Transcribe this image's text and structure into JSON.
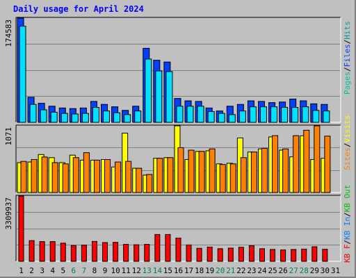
{
  "title": "Daily usage for April 2024",
  "chart_data": [
    {
      "type": "bar",
      "title": "Daily usage for April 2024",
      "categories": [
        "1",
        "2",
        "3",
        "4",
        "5",
        "6",
        "7",
        "8",
        "9",
        "10",
        "11",
        "12",
        "13",
        "14",
        "15",
        "16",
        "17",
        "18",
        "19",
        "20",
        "21",
        "22",
        "23",
        "24",
        "25",
        "26",
        "27",
        "28",
        "29",
        "30",
        "31"
      ],
      "weekend_days": [
        "6",
        "7",
        "13",
        "14",
        "20",
        "21",
        "27",
        "28"
      ],
      "ylabel_max": "174583",
      "ylim": [
        0,
        174583
      ],
      "legend": [
        "Pages",
        "Files",
        "Hits"
      ],
      "series": [
        {
          "name": "Hits",
          "color": "#0040ff",
          "values": [
            174583,
            42000,
            32000,
            27000,
            24000,
            23000,
            24000,
            35000,
            30000,
            26000,
            20000,
            27000,
            124000,
            104000,
            101000,
            40000,
            36000,
            35000,
            24000,
            19000,
            27000,
            30000,
            36000,
            35000,
            33000,
            34000,
            39000,
            36000,
            31000,
            30000,
            null
          ]
        },
        {
          "name": "Files",
          "color": "#00e0ff",
          "values": [
            161000,
            30000,
            21000,
            17000,
            15000,
            14000,
            15000,
            25000,
            19000,
            16000,
            13000,
            19000,
            106000,
            86000,
            85000,
            27000,
            27000,
            27000,
            18000,
            15000,
            13000,
            19000,
            26000,
            26000,
            26000,
            25000,
            25000,
            26000,
            20000,
            19000,
            null
          ]
        },
        {
          "name": "Pages",
          "color": "#00c0a0",
          "values": [
            null,
            null,
            null,
            null,
            null,
            null,
            null,
            null,
            null,
            null,
            null,
            null,
            null,
            null,
            null,
            null,
            null,
            null,
            null,
            null,
            null,
            null,
            null,
            null,
            null,
            null,
            null,
            null,
            null,
            null,
            null
          ]
        }
      ]
    },
    {
      "type": "bar",
      "categories": [
        "1",
        "2",
        "3",
        "4",
        "5",
        "6",
        "7",
        "8",
        "9",
        "10",
        "11",
        "12",
        "13",
        "14",
        "15",
        "16",
        "17",
        "18",
        "19",
        "20",
        "21",
        "22",
        "23",
        "24",
        "25",
        "26",
        "27",
        "28",
        "29",
        "30",
        "31"
      ],
      "ylabel_max": "1071",
      "ylim": [
        0,
        1071
      ],
      "legend": [
        "Visits",
        "Sites"
      ],
      "series": [
        {
          "name": "Visits",
          "color": "#ffff00",
          "values": [
            480,
            490,
            610,
            560,
            480,
            600,
            520,
            520,
            530,
            410,
            953,
            390,
            280,
            550,
            560,
            1071,
            530,
            660,
            670,
            460,
            470,
            876,
            650,
            700,
            893,
            680,
            573,
            910,
            530,
            550,
            null
          ]
        },
        {
          "name": "Sites",
          "color": "#ff8000",
          "values": [
            500,
            530,
            570,
            480,
            460,
            560,
            640,
            520,
            530,
            490,
            500,
            390,
            290,
            550,
            560,
            720,
            680,
            660,
            700,
            450,
            460,
            560,
            650,
            710,
            913,
            700,
            913,
            1000,
            1071,
            905,
            null
          ]
        }
      ]
    },
    {
      "type": "bar",
      "categories": [
        "1",
        "2",
        "3",
        "4",
        "5",
        "6",
        "7",
        "8",
        "9",
        "10",
        "11",
        "12",
        "13",
        "14",
        "15",
        "16",
        "17",
        "18",
        "19",
        "20",
        "21",
        "22",
        "23",
        "24",
        "25",
        "26",
        "27",
        "28",
        "29",
        "30",
        "31"
      ],
      "ylabel_max": "3309937",
      "ylim": [
        0,
        3309937
      ],
      "legend": [
        "KB F",
        "KB In",
        "KB Out"
      ],
      "series": [
        {
          "name": "KB F",
          "color": "#ff0000",
          "values": [
            3309937,
            1050000,
            1000000,
            1000000,
            920000,
            800000,
            820000,
            1010000,
            950000,
            960000,
            860000,
            840000,
            860000,
            1360000,
            1360000,
            1180000,
            830000,
            660000,
            720000,
            640000,
            670000,
            710000,
            790000,
            640000,
            600000,
            580000,
            600000,
            620000,
            740000,
            610000,
            null
          ]
        }
      ]
    }
  ]
}
